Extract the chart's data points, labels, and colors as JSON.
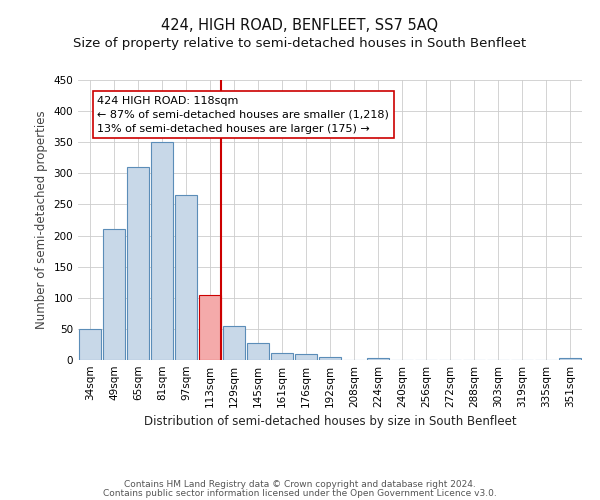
{
  "title": "424, HIGH ROAD, BENFLEET, SS7 5AQ",
  "subtitle": "Size of property relative to semi-detached houses in South Benfleet",
  "xlabel": "Distribution of semi-detached houses by size in South Benfleet",
  "ylabel": "Number of semi-detached properties",
  "categories": [
    "34sqm",
    "49sqm",
    "65sqm",
    "81sqm",
    "97sqm",
    "113sqm",
    "129sqm",
    "145sqm",
    "161sqm",
    "176sqm",
    "192sqm",
    "208sqm",
    "224sqm",
    "240sqm",
    "256sqm",
    "272sqm",
    "288sqm",
    "303sqm",
    "319sqm",
    "335sqm",
    "351sqm"
  ],
  "values": [
    50,
    210,
    310,
    350,
    265,
    105,
    55,
    28,
    12,
    10,
    5,
    0,
    4,
    0,
    0,
    0,
    0,
    0,
    0,
    0,
    4
  ],
  "bar_color": "#c8d8e8",
  "bar_edge_color": "#5b8db8",
  "highlight_bar_index": 5,
  "highlight_bar_color": "#f4aaaa",
  "highlight_bar_edge_color": "#cc0000",
  "vline_color": "#cc0000",
  "annotation_text_line1": "424 HIGH ROAD: 118sqm",
  "annotation_text_line2": "← 87% of semi-detached houses are smaller (1,218)",
  "annotation_text_line3": "13% of semi-detached houses are larger (175) →",
  "ylim": [
    0,
    450
  ],
  "yticks": [
    0,
    50,
    100,
    150,
    200,
    250,
    300,
    350,
    400,
    450
  ],
  "footnote1": "Contains HM Land Registry data © Crown copyright and database right 2024.",
  "footnote2": "Contains public sector information licensed under the Open Government Licence v3.0.",
  "bg_color": "#ffffff",
  "grid_color": "#cccccc",
  "title_fontsize": 10.5,
  "subtitle_fontsize": 9.5,
  "axis_label_fontsize": 8.5,
  "tick_fontsize": 7.5,
  "annotation_fontsize": 8,
  "footnote_fontsize": 6.5
}
